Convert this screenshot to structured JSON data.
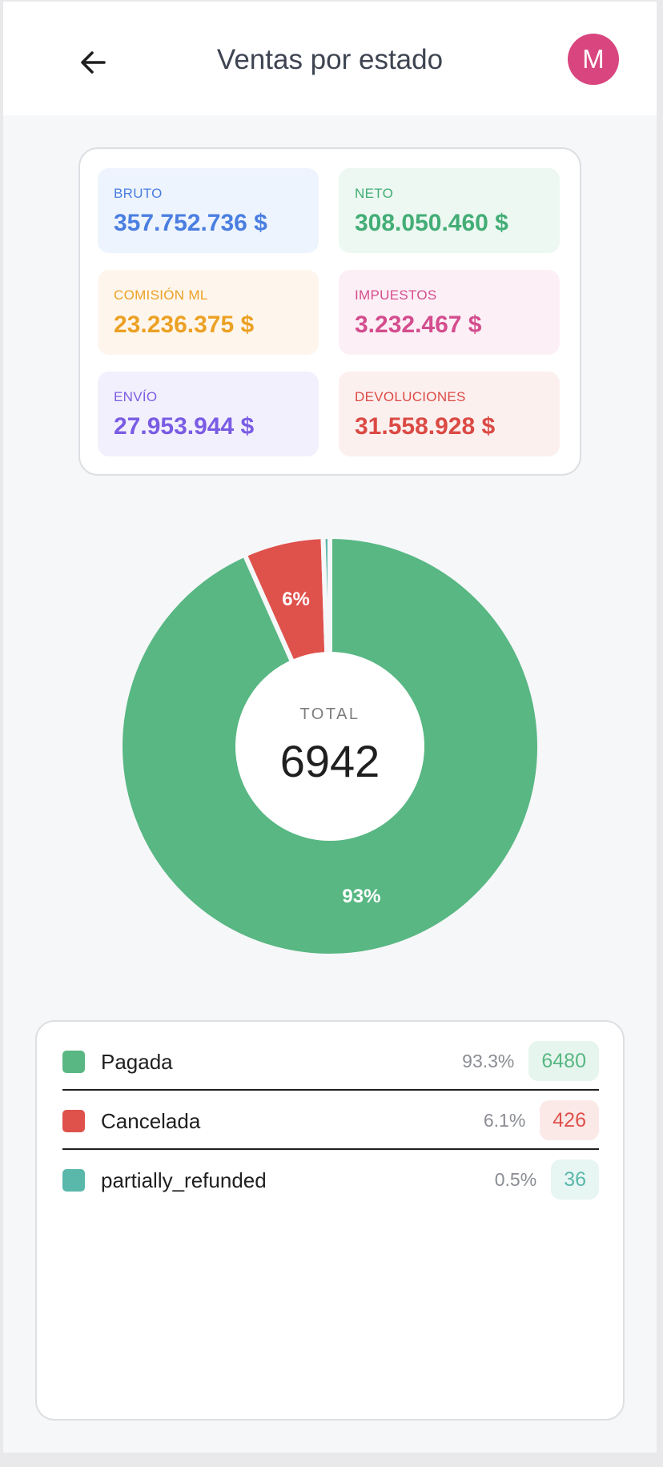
{
  "header": {
    "title": "Ventas por estado",
    "avatar_initial": "M",
    "back_icon": "arrow-left-icon"
  },
  "summary": [
    {
      "id": "bruto",
      "label": "BRUTO",
      "value": "357.752.736 $",
      "color": "#4a7ee0",
      "bg": "#eef4fe"
    },
    {
      "id": "neto",
      "label": "NETO",
      "value": "308.050.460 $",
      "color": "#43ad76",
      "bg": "#ecf8f1"
    },
    {
      "id": "comision",
      "label": "COMISIÓN ML",
      "value": "23.236.375 $",
      "color": "#eca125",
      "bg": "#fef6ec"
    },
    {
      "id": "impuestos",
      "label": "IMPUESTOS",
      "value": "3.232.467 $",
      "color": "#d44d8e",
      "bg": "#fcf0f6"
    },
    {
      "id": "envio",
      "label": "ENVÍO",
      "value": "27.953.944 $",
      "color": "#7a5ce4",
      "bg": "#f3f0fd"
    },
    {
      "id": "devoluciones",
      "label": "DEVOLUCIONES",
      "value": "31.558.928 $",
      "color": "#db4a44",
      "bg": "#fcf0ef"
    }
  ],
  "chart_data": {
    "type": "pie",
    "center_label": "TOTAL",
    "total": "6942",
    "slices": [
      {
        "name": "Pagada",
        "value": 6480,
        "color": "#58b783",
        "label": "93%"
      },
      {
        "name": "Cancelada",
        "value": 426,
        "color": "#df514b",
        "label": "6%"
      },
      {
        "name": "partially_refunded",
        "value": 36,
        "color": "#5ab8ab",
        "label": ""
      }
    ]
  },
  "legend": [
    {
      "name": "Pagada",
      "percent": "93.3%",
      "count": "6480",
      "color": "#58b783",
      "badge_bg": "#e6f5ed"
    },
    {
      "name": "Cancelada",
      "percent": "6.1%",
      "count": "426",
      "color": "#df514b",
      "badge_bg": "#fbe9e8"
    },
    {
      "name": "partially_refunded",
      "percent": "0.5%",
      "count": "36",
      "color": "#5ab8ab",
      "badge_bg": "#e7f5f3"
    }
  ]
}
